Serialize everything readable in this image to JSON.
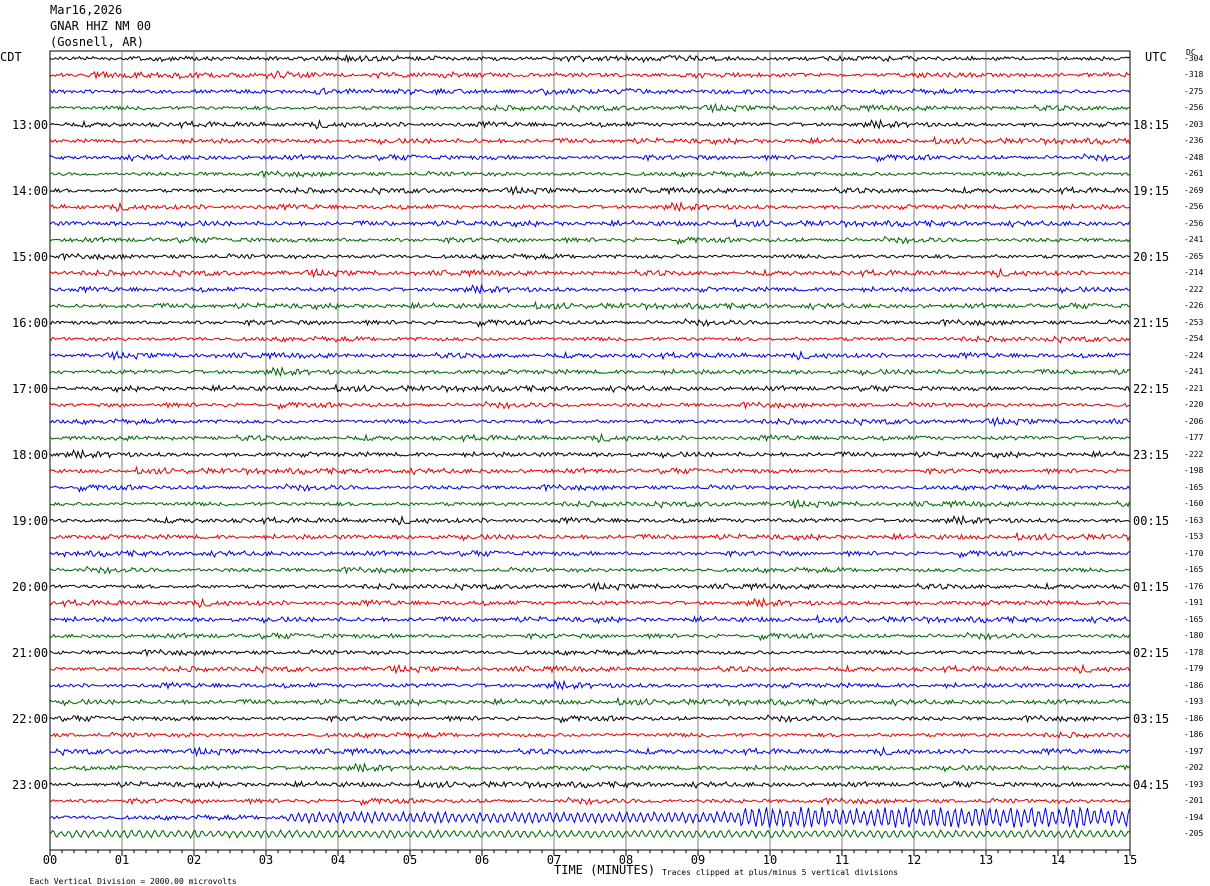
{
  "header": {
    "date": "Mar16,2026",
    "station": "GNAR HHZ NM 00",
    "location": "(Gosnell, AR)"
  },
  "left_zone": "CDT",
  "right_zone": "UTC",
  "dc_header": "DC",
  "footer": {
    "scale": "Each Vertical Division = 2000.00 microvolts",
    "xaxis_title": "TIME (MINUTES)",
    "clip_note": "Traces clipped at plus/minus 5 vertical divisions"
  },
  "colors": {
    "trace_cycle": [
      "#000000",
      "#e00000",
      "#0000dd",
      "#006600"
    ],
    "grid": "#808080"
  },
  "chart_data": {
    "type": "line",
    "xlabel": "TIME (MINUTES)",
    "xlim": [
      0,
      15
    ],
    "x_ticks": [
      "00",
      "01",
      "02",
      "03",
      "04",
      "05",
      "06",
      "07",
      "08",
      "09",
      "10",
      "11",
      "12",
      "13",
      "14",
      "15"
    ],
    "rows": 48,
    "left_hour_labels": [
      "13:00",
      "14:00",
      "15:00",
      "16:00",
      "17:00",
      "18:00",
      "19:00",
      "20:00",
      "21:00",
      "22:00",
      "23:00"
    ],
    "right_hour_labels": [
      "18:15",
      "19:15",
      "20:15",
      "21:15",
      "22:15",
      "23:15",
      "00:15",
      "01:15",
      "02:15",
      "03:15",
      "04:15"
    ],
    "hour_label_start_row": 4,
    "dc_offsets": [
      "-304",
      "-318",
      "-275",
      "-256",
      "-203",
      "-236",
      "-248",
      "-261",
      "-269",
      "-256",
      "-256",
      "-241",
      "-265",
      "-214",
      "-222",
      "-226",
      "-253",
      "-254",
      "-224",
      "-241",
      "-221",
      "-220",
      "-206",
      "-177",
      "-222",
      "-198",
      "-165",
      "-160",
      "-163",
      "-153",
      "-170",
      "-165",
      "-176",
      "-191",
      "-165",
      "-180",
      "-178",
      "-179",
      "-186",
      "-193",
      "-186",
      "-186",
      "-197",
      "-202",
      "-193",
      "-201",
      "-194",
      "-205"
    ]
  }
}
